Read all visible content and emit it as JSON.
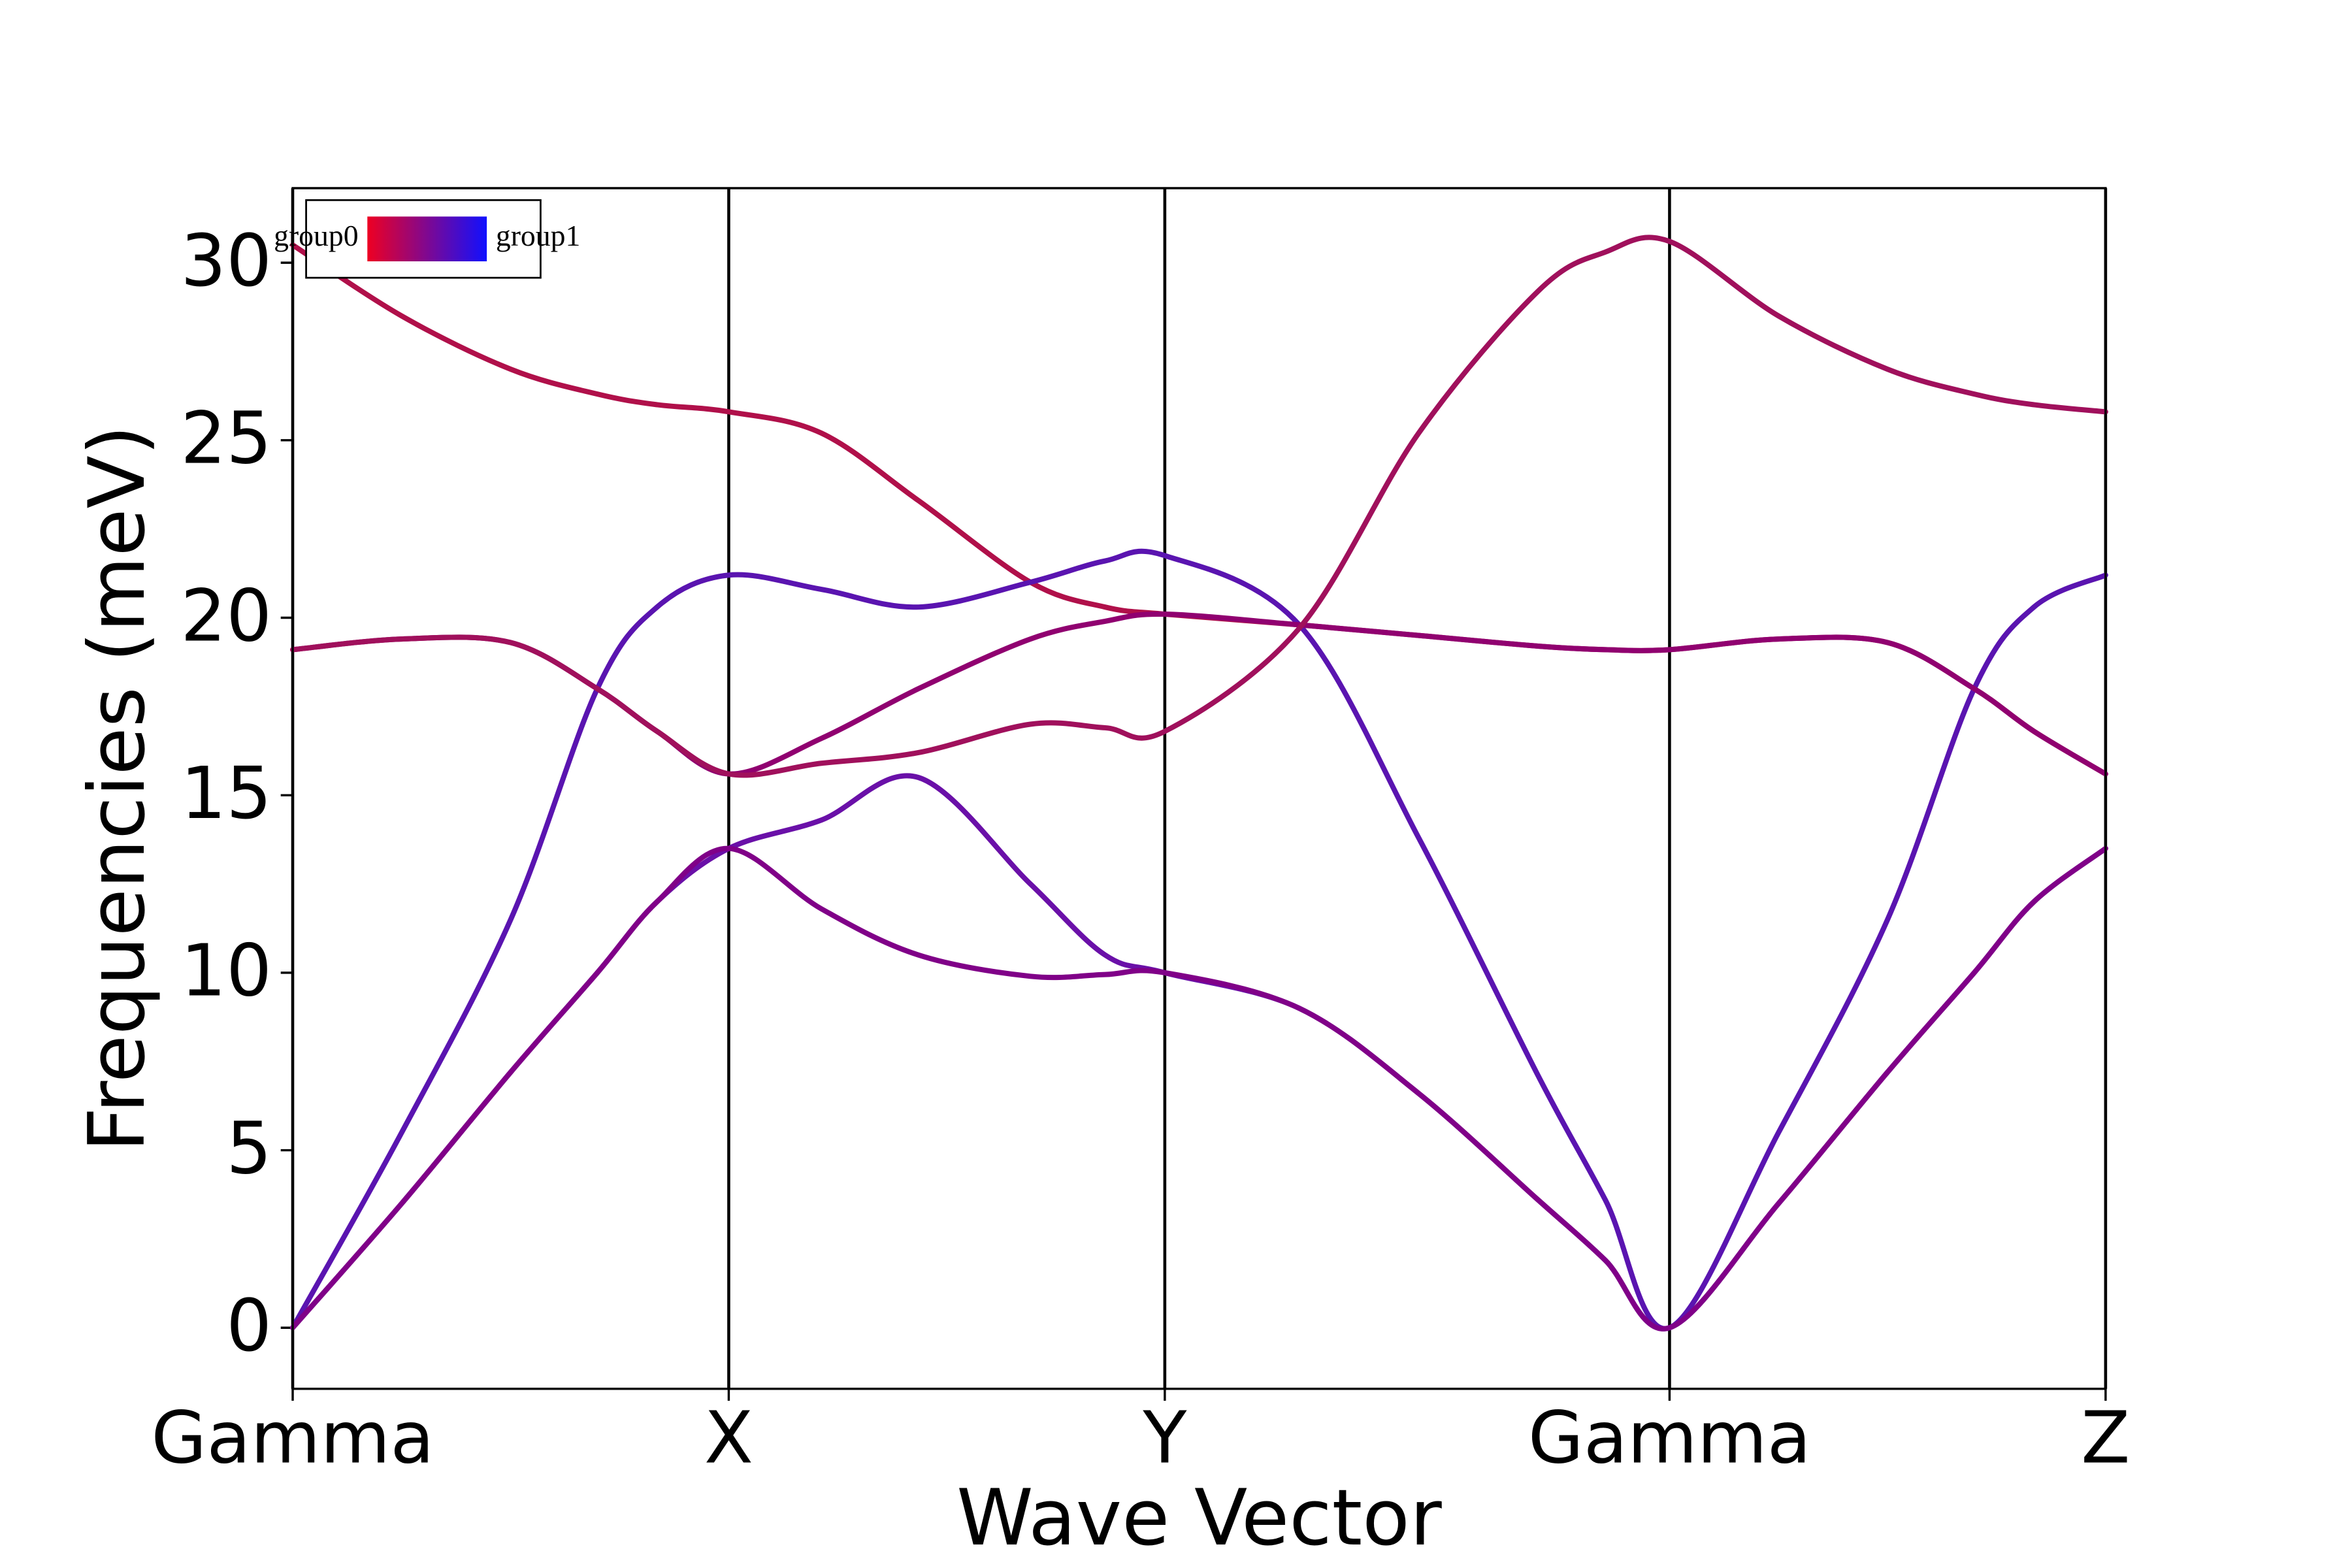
{
  "chart_data": {
    "type": "line",
    "xlabel": "Wave Vector",
    "ylabel": "Frequencies (meV)",
    "x": [
      0,
      0.73,
      1.46,
      2.04,
      2.44,
      2.92,
      3.54,
      4.19,
      4.94,
      5.44,
      5.84,
      6.74,
      7.54,
      8.34,
      8.79,
      9.22,
      9.95,
      10.68,
      11.26,
      11.66,
      12.14
    ],
    "series": [
      {
        "color": "#b0104a",
        "values": [
          30.5,
          28.5,
          27.0,
          26.3,
          26.0,
          25.8,
          25.2,
          23.3,
          21.0,
          20.3,
          20.1,
          19.8,
          19.5,
          19.2,
          19.1,
          19.1,
          19.4,
          19.3,
          18.0,
          16.8,
          15.6
        ]
      },
      {
        "color": "#5a14b0",
        "values": [
          0,
          5.5,
          11.5,
          18.0,
          20.3,
          21.2,
          20.8,
          20.3,
          21.0,
          21.6,
          21.75,
          19.8,
          13.8,
          7.1,
          3.6,
          0,
          5.5,
          11.5,
          18.0,
          20.3,
          21.2
        ]
      },
      {
        "color": "#900070",
        "values": [
          19.1,
          19.4,
          19.3,
          18.0,
          16.8,
          15.6,
          16.6,
          18.0,
          19.4,
          19.9,
          20.1,
          19.8,
          19.5,
          19.2,
          19.1,
          19.1,
          19.4,
          19.3,
          18.0,
          16.8,
          15.6
        ]
      },
      {
        "color": "#a0105c",
        "values": [
          19.1,
          19.4,
          19.3,
          18.0,
          16.8,
          15.6,
          15.9,
          16.2,
          17.0,
          16.9,
          16.8,
          19.7,
          25.2,
          29.2,
          30.3,
          30.6,
          28.5,
          27.0,
          26.3,
          26.0,
          25.8
        ]
      },
      {
        "color": "#6a10a8",
        "values": [
          0,
          3.5,
          7.2,
          10.0,
          12.0,
          13.5,
          14.3,
          15.5,
          12.5,
          10.5,
          10.0,
          9.0,
          6.6,
          3.6,
          1.9,
          0,
          3.5,
          7.2,
          10.0,
          12.0,
          13.5
        ]
      },
      {
        "color": "#800088",
        "values": [
          0,
          3.5,
          7.2,
          10.0,
          12.0,
          13.5,
          11.8,
          10.5,
          9.9,
          9.95,
          10.0,
          9.0,
          6.6,
          3.6,
          1.9,
          0,
          3.5,
          7.2,
          10.0,
          12.0,
          13.5
        ]
      }
    ],
    "xlim": [
      0,
      12.14
    ],
    "xticks": [
      {
        "value": 0,
        "label": "Gamma"
      },
      {
        "value": 2.92,
        "label": "X"
      },
      {
        "value": 5.84,
        "label": "Y"
      },
      {
        "value": 9.22,
        "label": "Gamma"
      },
      {
        "value": 12.14,
        "label": "Z"
      }
    ],
    "xgrid": true,
    "ylim": [
      -1.72,
      32.1
    ],
    "yticks": [
      0,
      5,
      10,
      15,
      20,
      25,
      30
    ],
    "legend": {
      "labels": [
        "group0",
        "group1"
      ],
      "colors": [
        "#ee0022",
        "#1010ff"
      ],
      "position": "upper left"
    }
  }
}
